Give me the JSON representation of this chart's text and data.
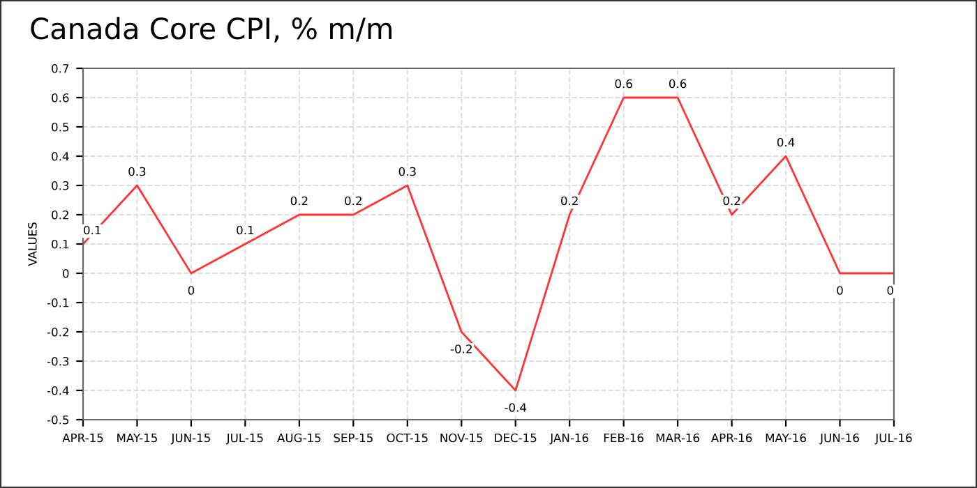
{
  "chart_data": {
    "type": "line",
    "title": "Canada Core CPI, % m/m",
    "ylabel": "VALUES",
    "categories": [
      "APR-15",
      "MAY-15",
      "JUN-15",
      "JUL-15",
      "AUG-15",
      "SEP-15",
      "OCT-15",
      "NOV-15",
      "DEC-15",
      "JAN-16",
      "FEB-16",
      "MAR-16",
      "APR-16",
      "MAY-16",
      "JUN-16",
      "JUL-16"
    ],
    "series": [
      {
        "color": "#ff3333",
        "values": [
          0.1,
          0.3,
          0,
          0.1,
          0.2,
          0.2,
          0.3,
          -0.2,
          -0.4,
          0.2,
          0.6,
          0.6,
          0.2,
          0.4,
          0,
          0
        ]
      }
    ],
    "ylim": [
      -0.5,
      0.7
    ],
    "yticks": [
      -0.5,
      -0.4,
      -0.3,
      -0.2,
      -0.1,
      0,
      0.1,
      0.2,
      0.3,
      0.4,
      0.5,
      0.6,
      0.7
    ],
    "grid": true,
    "data_labels": true,
    "marker": "none",
    "line_style": "solid"
  }
}
